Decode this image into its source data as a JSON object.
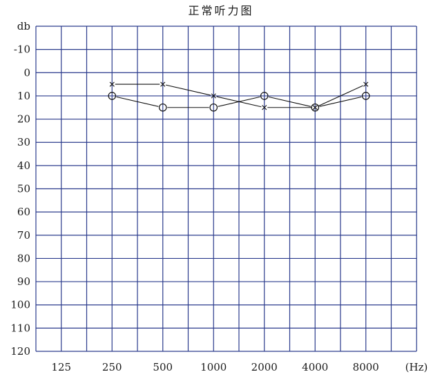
{
  "title": "正常听力图",
  "chart_data": {
    "type": "line",
    "title": "正常听力图",
    "xlabel": "(Hz)",
    "ylabel": "db",
    "x_ticks": [
      "125",
      "250",
      "500",
      "1000",
      "2000",
      "4000",
      "8000"
    ],
    "y_ticks": [
      "-10",
      "0",
      "10",
      "20",
      "30",
      "40",
      "50",
      "60",
      "70",
      "80",
      "90",
      "100",
      "110",
      "120"
    ],
    "ylim": [
      -20,
      120
    ],
    "grid": true,
    "series": [
      {
        "marker": "x",
        "x": [
          "250",
          "500",
          "1000",
          "2000",
          "4000",
          "8000"
        ],
        "values": [
          5,
          5,
          10,
          15,
          15,
          5
        ]
      },
      {
        "marker": "o",
        "x": [
          "250",
          "500",
          "1000",
          "2000",
          "4000",
          "8000"
        ],
        "values": [
          10,
          15,
          15,
          10,
          15,
          10
        ]
      }
    ],
    "colors": {
      "grid": "#2a3a8c",
      "line": "#111111"
    }
  }
}
